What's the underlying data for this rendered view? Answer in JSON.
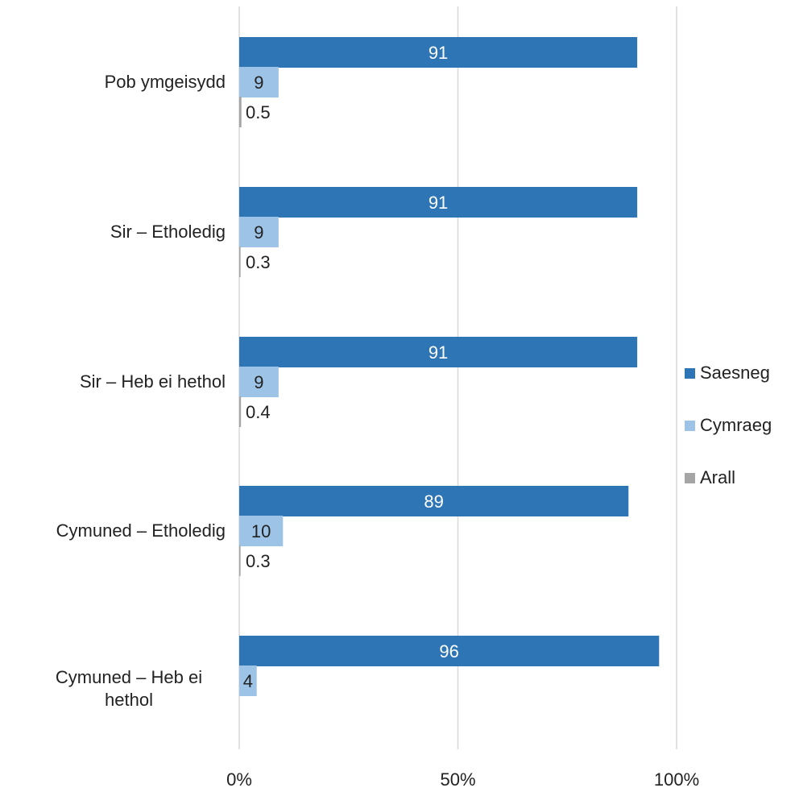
{
  "chart_data": {
    "type": "bar",
    "orientation": "horizontal",
    "categories": [
      "Pob ymgeisydd",
      "Sir – Etholedig",
      "Sir – Heb ei hethol",
      "Cymuned – Etholedig",
      "Cymuned – Heb ei hethol"
    ],
    "category_lines": [
      [
        "Pob ymgeisydd"
      ],
      [
        "Sir – Etholedig"
      ],
      [
        "Sir – Heb ei hethol"
      ],
      [
        "Cymuned – Etholedig"
      ],
      [
        "Cymuned – Heb ei",
        "hethol"
      ]
    ],
    "series": [
      {
        "name": "Saesneg",
        "color": "#2e75b6",
        "values": [
          91,
          91,
          91,
          89,
          96
        ],
        "labels": [
          "91",
          "91",
          "91",
          "89",
          "96"
        ]
      },
      {
        "name": "Cymraeg",
        "color": "#9dc3e6",
        "values": [
          9,
          9,
          9,
          10,
          4
        ],
        "labels": [
          "9",
          "9",
          "9",
          "10",
          "4"
        ]
      },
      {
        "name": "Arall",
        "color": "#a5a5a5",
        "values": [
          0.5,
          0.3,
          0.4,
          0.3,
          0
        ],
        "labels": [
          "0.5",
          "0.3",
          "0.4",
          "0.3",
          ""
        ]
      }
    ],
    "x_ticks": [
      "0%",
      "50%",
      "100%"
    ],
    "xlim": [
      0,
      100
    ],
    "grid": true,
    "legend_position": "right"
  }
}
